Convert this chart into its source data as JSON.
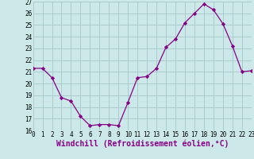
{
  "x": [
    0,
    1,
    2,
    3,
    4,
    5,
    6,
    7,
    8,
    9,
    10,
    11,
    12,
    13,
    14,
    15,
    16,
    17,
    18,
    19,
    20,
    21,
    22,
    23
  ],
  "y": [
    21.3,
    21.3,
    20.5,
    18.8,
    18.5,
    17.2,
    16.4,
    16.5,
    16.5,
    16.4,
    18.4,
    20.5,
    20.6,
    21.3,
    23.1,
    23.8,
    25.2,
    26.0,
    26.8,
    26.3,
    25.1,
    23.2,
    21.0,
    21.1
  ],
  "line_color": "#880088",
  "marker": "D",
  "marker_size": 2.2,
  "bg_color": "#cce8e8",
  "grid_color": "#aacccc",
  "xlabel": "Windchill (Refroidissement éolien,°C)",
  "xlabel_fontsize": 7,
  "xlim": [
    0,
    23
  ],
  "ylim": [
    16,
    27
  ],
  "yticks": [
    16,
    17,
    18,
    19,
    20,
    21,
    22,
    23,
    24,
    25,
    26,
    27
  ],
  "xticks": [
    0,
    1,
    2,
    3,
    4,
    5,
    6,
    7,
    8,
    9,
    10,
    11,
    12,
    13,
    14,
    15,
    16,
    17,
    18,
    19,
    20,
    21,
    22,
    23
  ],
  "tick_fontsize": 5.5,
  "ylabel_fontsize": 6
}
